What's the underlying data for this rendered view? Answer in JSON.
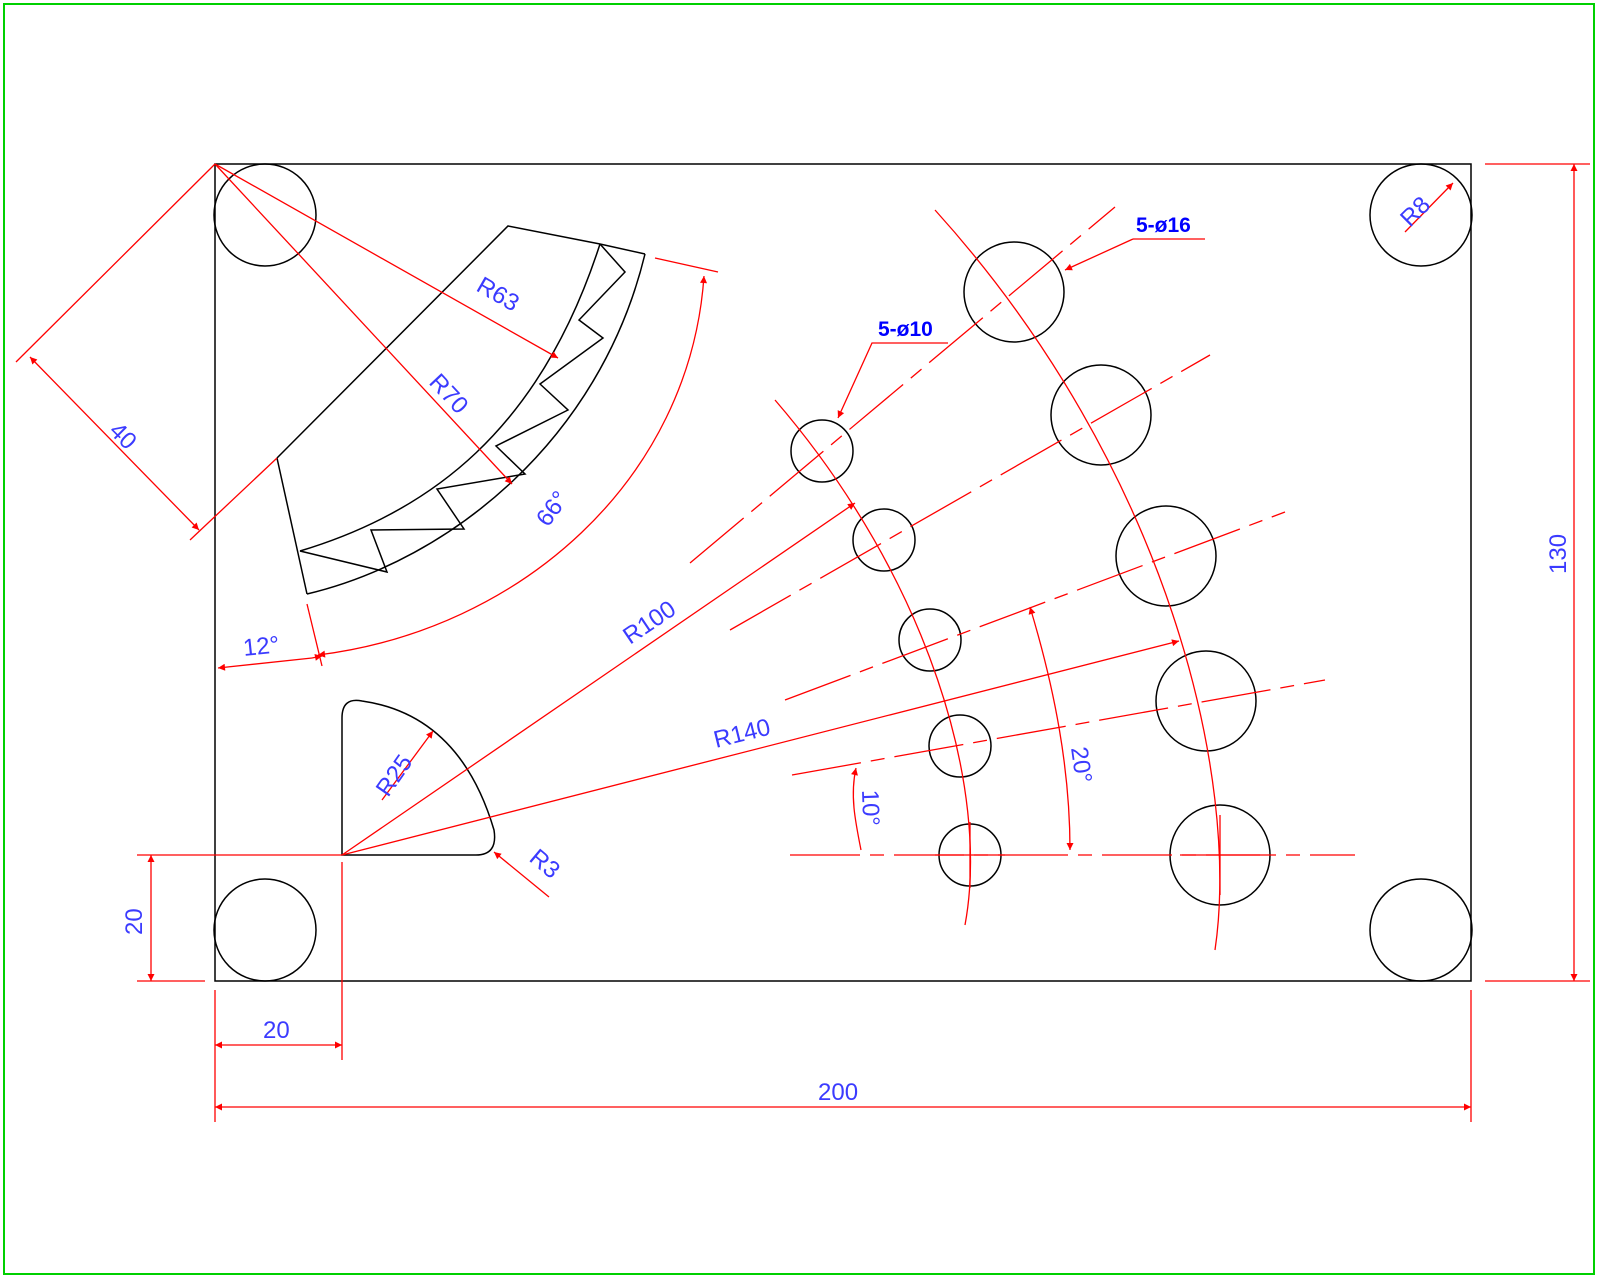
{
  "colors": {
    "object_lines": "#000000",
    "dimension_lines": "#ff0000",
    "dimension_text": "#3b3bff",
    "leader_text": "#0000ff",
    "frame": "#00d000"
  },
  "dimensions": {
    "width": "200",
    "height": "130",
    "offset_x": "20",
    "offset_y": "20",
    "fan_depth": "40",
    "arc_angle": "66°",
    "start_angle": "12°",
    "first_ray_angle": "10°",
    "ray_spacing_angle": "20°"
  },
  "radii": {
    "corner": "R8",
    "inner_arc": "R63",
    "outer_arc": "R70",
    "small_hole_arc": "R100",
    "large_hole_arc": "R140",
    "quarter_round": "R25",
    "fillet": "R3"
  },
  "callouts": {
    "large_holes": "5-ø16",
    "small_holes": "5-ø10"
  }
}
